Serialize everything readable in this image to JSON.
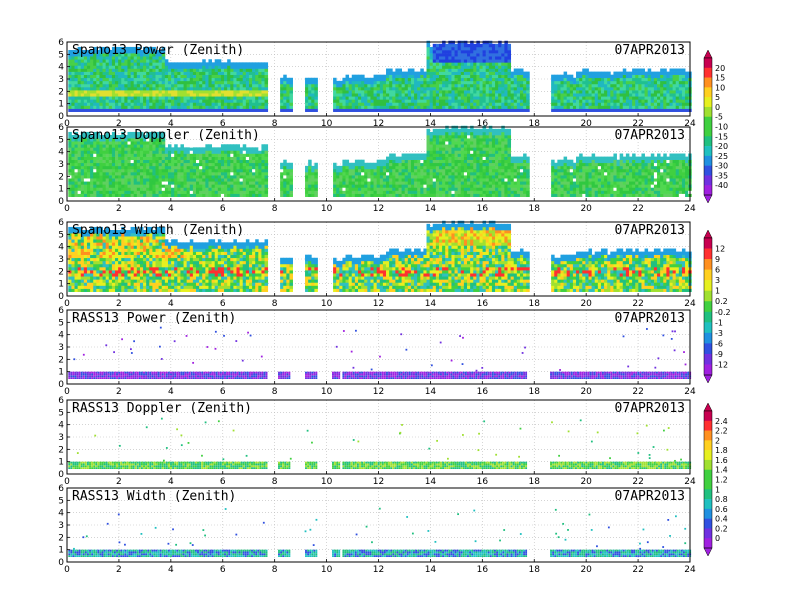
{
  "chart_data": [
    {
      "type": "heatmap",
      "title": "Spano13 Power (Zenith)",
      "date_label": "07APR2013",
      "x_ticks": [
        "0",
        "2",
        "4",
        "6",
        "8",
        "10",
        "12",
        "14",
        "16",
        "18",
        "20",
        "22",
        "24"
      ],
      "y_ticks": [
        "0",
        "1",
        "2",
        "3",
        "4",
        "5",
        "6"
      ],
      "xlim": [
        0,
        24
      ],
      "ylim": [
        0,
        6
      ],
      "colorbar_labels": [
        "20",
        "15",
        "10",
        "5",
        "0",
        "-5",
        "-10",
        "-15",
        "-20",
        "-25",
        "-30",
        "-35",
        "-40"
      ],
      "colorbar_range": [
        -40,
        20
      ],
      "data_gaps_hours": [
        [
          7.7,
          8.1
        ],
        [
          8.6,
          9.1
        ],
        [
          9.6,
          10.2
        ],
        [
          10.5,
          10.6
        ],
        [
          17.7,
          18.6
        ]
      ]
    },
    {
      "type": "heatmap",
      "title": "Spano13 Doppler (Zenith)",
      "date_label": "07APR2013",
      "x_ticks": [
        "0",
        "2",
        "4",
        "6",
        "8",
        "10",
        "12",
        "14",
        "16",
        "18",
        "20",
        "22",
        "24"
      ],
      "y_ticks": [
        "0",
        "1",
        "2",
        "3",
        "4",
        "5",
        "6"
      ],
      "xlim": [
        0,
        24
      ],
      "ylim": [
        0,
        6
      ],
      "data_gaps_hours": [
        [
          7.7,
          8.1
        ],
        [
          8.6,
          9.1
        ],
        [
          9.6,
          10.2
        ],
        [
          10.5,
          10.6
        ],
        [
          17.7,
          18.6
        ]
      ]
    },
    {
      "type": "heatmap",
      "title": "Spano13 Width (Zenith)",
      "date_label": "07APR2013",
      "x_ticks": [
        "0",
        "2",
        "4",
        "6",
        "8",
        "10",
        "12",
        "14",
        "16",
        "18",
        "20",
        "22",
        "24"
      ],
      "y_ticks": [
        "0",
        "1",
        "2",
        "3",
        "4",
        "5",
        "6"
      ],
      "xlim": [
        0,
        24
      ],
      "ylim": [
        0,
        6
      ],
      "colorbar_labels": [
        "12",
        "9",
        "6",
        "3",
        "1",
        "0.2",
        "-0.2",
        "-1",
        "-3",
        "-6",
        "-9",
        "-12"
      ],
      "colorbar_range": [
        -12,
        12
      ],
      "data_gaps_hours": [
        [
          7.7,
          8.1
        ],
        [
          8.6,
          9.1
        ],
        [
          9.6,
          10.2
        ],
        [
          10.5,
          10.6
        ],
        [
          17.7,
          18.6
        ]
      ]
    },
    {
      "type": "heatmap",
      "title": "RASS13 Power (Zenith)",
      "date_label": "07APR2013",
      "x_ticks": [
        "0",
        "2",
        "4",
        "6",
        "8",
        "10",
        "12",
        "14",
        "16",
        "18",
        "20",
        "22",
        "24"
      ],
      "y_ticks": [
        "0",
        "1",
        "2",
        "3",
        "4",
        "5",
        "6"
      ],
      "xlim": [
        0,
        24
      ],
      "ylim": [
        0,
        6
      ],
      "data_gaps_hours": [
        [
          7.7,
          8.1
        ],
        [
          8.6,
          9.1
        ],
        [
          9.6,
          10.2
        ],
        [
          10.5,
          10.6
        ],
        [
          17.7,
          18.6
        ]
      ]
    },
    {
      "type": "heatmap",
      "title": "RASS13 Doppler (Zenith)",
      "date_label": "07APR2013",
      "x_ticks": [
        "0",
        "2",
        "4",
        "6",
        "8",
        "10",
        "12",
        "14",
        "16",
        "18",
        "20",
        "22",
        "24"
      ],
      "y_ticks": [
        "0",
        "1",
        "2",
        "3",
        "4",
        "5",
        "6"
      ],
      "xlim": [
        0,
        24
      ],
      "ylim": [
        0,
        6
      ],
      "colorbar_labels": [
        "2.4",
        "2.2",
        "2",
        "1.8",
        "1.6",
        "1.4",
        "1.2",
        "1",
        "0.8",
        "0.6",
        "0.4",
        "0.2",
        "0"
      ],
      "colorbar_range": [
        0,
        2.4
      ],
      "data_gaps_hours": [
        [
          7.7,
          8.1
        ],
        [
          8.6,
          9.1
        ],
        [
          9.6,
          10.2
        ],
        [
          10.5,
          10.6
        ],
        [
          17.7,
          18.6
        ]
      ]
    },
    {
      "type": "heatmap",
      "title": "RASS13 Width (Zenith)",
      "date_label": "07APR2013",
      "x_ticks": [
        "0",
        "2",
        "4",
        "6",
        "8",
        "10",
        "12",
        "14",
        "16",
        "18",
        "20",
        "22",
        "24"
      ],
      "y_ticks": [
        "0",
        "1",
        "2",
        "3",
        "4",
        "5",
        "6"
      ],
      "xlim": [
        0,
        24
      ],
      "ylim": [
        0,
        6
      ],
      "data_gaps_hours": [
        [
          7.7,
          8.1
        ],
        [
          8.6,
          9.1
        ],
        [
          9.6,
          10.2
        ],
        [
          10.5,
          10.6
        ],
        [
          17.7,
          18.6
        ]
      ]
    }
  ],
  "colorbar_colors": [
    "#c80050",
    "#ff3030",
    "#ff9020",
    "#ffd020",
    "#e6f020",
    "#a0e030",
    "#40d040",
    "#20c080",
    "#20c0c0",
    "#2090e0",
    "#3050e0",
    "#7030e0",
    "#a020e0"
  ]
}
